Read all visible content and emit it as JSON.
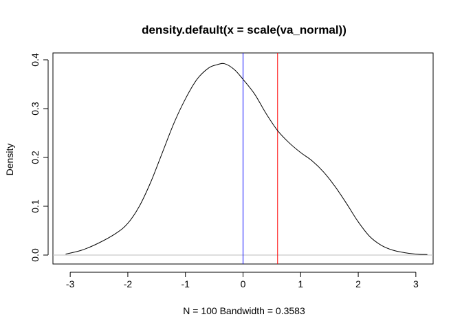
{
  "chart_data": {
    "type": "line",
    "title": "density.default(x = scale(va_normal))",
    "xlabel": "N = 100   Bandwidth = 0.3583",
    "ylabel": "Density",
    "xlim": [
      -3.3,
      3.3
    ],
    "ylim": [
      0.0,
      0.4
    ],
    "x_ticks": [
      "-3",
      "-2",
      "-1",
      "0",
      "1",
      "2",
      "3"
    ],
    "y_ticks": [
      "0.0",
      "0.1",
      "0.2",
      "0.3",
      "0.4"
    ],
    "grid": false,
    "series": [
      {
        "color": "#000000",
        "x": [
          -3.08,
          -2.8,
          -2.5,
          -2.2,
          -2.0,
          -1.8,
          -1.6,
          -1.4,
          -1.2,
          -1.0,
          -0.8,
          -0.6,
          -0.45,
          -0.32,
          -0.15,
          0.0,
          0.2,
          0.4,
          0.6,
          0.8,
          1.0,
          1.2,
          1.4,
          1.6,
          1.8,
          2.0,
          2.2,
          2.4,
          2.6,
          2.8,
          3.0,
          3.2
        ],
        "y": [
          0.002,
          0.01,
          0.025,
          0.045,
          0.065,
          0.1,
          0.15,
          0.21,
          0.27,
          0.32,
          0.36,
          0.383,
          0.39,
          0.392,
          0.38,
          0.36,
          0.33,
          0.29,
          0.255,
          0.23,
          0.21,
          0.193,
          0.17,
          0.14,
          0.105,
          0.068,
          0.038,
          0.02,
          0.01,
          0.005,
          0.002,
          0.001
        ]
      }
    ],
    "reference_lines": [
      {
        "orientation": "horizontal",
        "value": 0.0,
        "color": "#bebebe"
      },
      {
        "orientation": "vertical",
        "value": 0.0,
        "color": "#0000ff"
      },
      {
        "orientation": "vertical",
        "value": 0.6,
        "color": "#ff0000"
      }
    ]
  }
}
